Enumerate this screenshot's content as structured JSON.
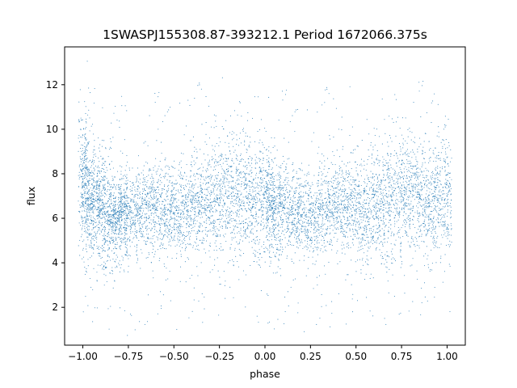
{
  "chart_data": {
    "type": "scatter",
    "title": "1SWASPJ155308.87-393212.1 Period 1672066.375s",
    "xlabel": "phase",
    "ylabel": "flux",
    "xlim": [
      -1.1,
      1.1
    ],
    "ylim": [
      0.3,
      13.7
    ],
    "x_ticks": [
      -1.0,
      -0.75,
      -0.5,
      -0.25,
      0.0,
      0.25,
      0.5,
      0.75,
      1.0
    ],
    "x_tick_labels": [
      "−1.00",
      "−0.75",
      "−0.50",
      "−0.25",
      "0.00",
      "0.25",
      "0.50",
      "0.75",
      "1.00"
    ],
    "y_ticks": [
      2,
      4,
      6,
      8,
      10,
      12
    ],
    "y_tick_labels": [
      "2",
      "4",
      "6",
      "8",
      "10",
      "12"
    ],
    "grid": false,
    "marker_color": "#1f77b4",
    "series": [
      {
        "name": "",
        "x": [
          -1.0,
          -0.98,
          -0.96,
          -0.93,
          -0.9,
          -0.87,
          -0.84,
          -0.81,
          -0.78,
          -0.75,
          -0.7,
          -0.65,
          -0.6,
          -0.55,
          -0.5,
          -0.45,
          -0.4,
          -0.35,
          -0.3,
          -0.25,
          -0.2,
          -0.15,
          -0.1,
          -0.05,
          0.0,
          0.03,
          0.06,
          0.1,
          0.15,
          0.2,
          0.25,
          0.3,
          0.35,
          0.4,
          0.45,
          0.5,
          0.55,
          0.6,
          0.65,
          0.7,
          0.75,
          0.8,
          0.85,
          0.9,
          0.95,
          1.0
        ],
        "y": [
          8.0,
          6.9,
          6.6,
          6.8,
          6.4,
          6.1,
          5.8,
          6.0,
          6.3,
          6.0,
          6.3,
          6.6,
          6.4,
          6.3,
          6.2,
          6.3,
          6.5,
          6.6,
          6.7,
          6.9,
          7.0,
          7.1,
          6.9,
          6.7,
          6.9,
          6.6,
          6.4,
          6.5,
          6.3,
          6.1,
          6.0,
          6.2,
          6.4,
          6.6,
          6.5,
          6.4,
          6.3,
          6.5,
          6.6,
          6.8,
          7.0,
          7.2,
          6.9,
          6.7,
          6.8,
          7.0
        ],
        "spread": [
          1.6,
          1.3,
          1.3,
          1.2,
          1.3,
          1.4,
          1.0,
          0.9,
          1.0,
          0.9,
          1.0,
          1.0,
          1.1,
          1.1,
          1.0,
          1.1,
          1.1,
          1.2,
          1.3,
          1.4,
          1.4,
          1.4,
          1.3,
          1.3,
          1.2,
          1.2,
          1.2,
          1.1,
          1.0,
          1.0,
          1.0,
          1.0,
          1.1,
          1.1,
          1.1,
          1.1,
          1.2,
          1.2,
          1.3,
          1.4,
          1.4,
          1.4,
          1.3,
          1.3,
          1.4,
          1.5
        ]
      }
    ]
  }
}
